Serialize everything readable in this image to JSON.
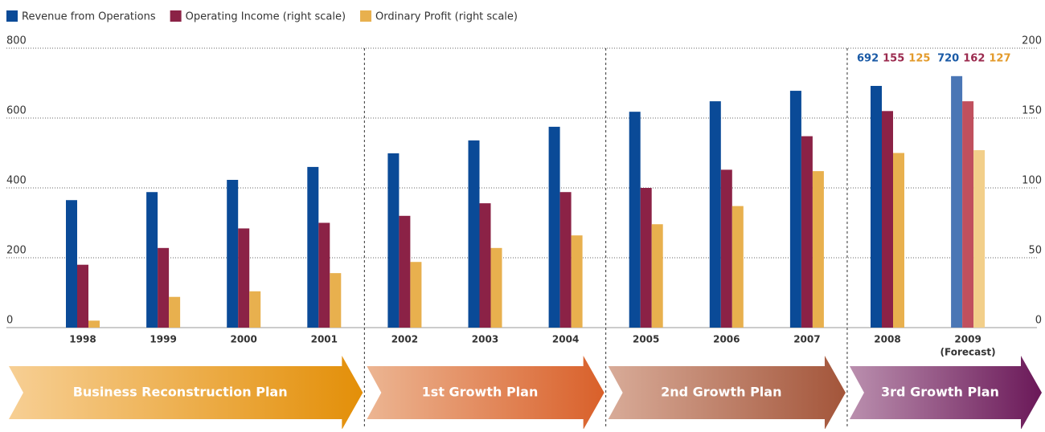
{
  "chart_data": {
    "type": "bar",
    "categories": [
      "1998",
      "1999",
      "2000",
      "2001",
      "2002",
      "2003",
      "2004",
      "2005",
      "2006",
      "2007",
      "2008",
      "2009"
    ],
    "forecast_note": "(Forecast)",
    "series": [
      {
        "name": "Revenue from Operations",
        "color": "#0a4a97",
        "forecast_color": "#4a76b5",
        "axis": "y",
        "values": [
          365,
          388,
          423,
          460,
          499,
          536,
          575,
          618,
          648,
          678,
          692,
          720
        ],
        "value_labels": [
          null,
          null,
          null,
          null,
          null,
          null,
          null,
          null,
          null,
          null,
          "692",
          "720"
        ]
      },
      {
        "name": "Operating Income (right scale)",
        "color": "#8b2246",
        "forecast_color": "#c0505e",
        "axis": "y2",
        "values": [
          45,
          57,
          71,
          75,
          80,
          89,
          97,
          100,
          113,
          137,
          155,
          162
        ],
        "value_labels": [
          null,
          null,
          null,
          null,
          null,
          null,
          null,
          null,
          null,
          null,
          "155",
          "162"
        ]
      },
      {
        "name": "Ordinary Profit (right scale)",
        "color": "#e8b04e",
        "forecast_color": "#f2cf8a",
        "axis": "y2",
        "values": [
          5,
          22,
          26,
          39,
          47,
          57,
          66,
          74,
          87,
          112,
          125,
          127
        ],
        "value_labels": [
          null,
          null,
          null,
          null,
          null,
          null,
          null,
          null,
          null,
          null,
          "125",
          "127"
        ]
      }
    ],
    "label_colors": [
      "#1a5aa6",
      "#9b2a4e",
      "#e39a2a"
    ],
    "ylim": [
      0,
      800
    ],
    "yticks": [
      0,
      200,
      400,
      600,
      800
    ],
    "y2lim": [
      0,
      200
    ],
    "y2ticks": [
      0,
      50,
      100,
      150,
      200
    ],
    "grid": true,
    "plans": [
      {
        "label": "Business Reconstruction Plan",
        "from": "1998",
        "to": "2001",
        "colors": [
          "#f7cf94",
          "#e38f08"
        ]
      },
      {
        "label": "1st Growth Plan",
        "from": "2002",
        "to": "2004",
        "colors": [
          "#ecb592",
          "#d9602a"
        ]
      },
      {
        "label": "2nd Growth Plan",
        "from": "2005",
        "to": "2007",
        "colors": [
          "#d8ab98",
          "#a3553a"
        ]
      },
      {
        "label": "3rd Growth Plan",
        "from": "2008",
        "to": "2009",
        "colors": [
          "#ba8fae",
          "#6a1858"
        ]
      }
    ]
  }
}
